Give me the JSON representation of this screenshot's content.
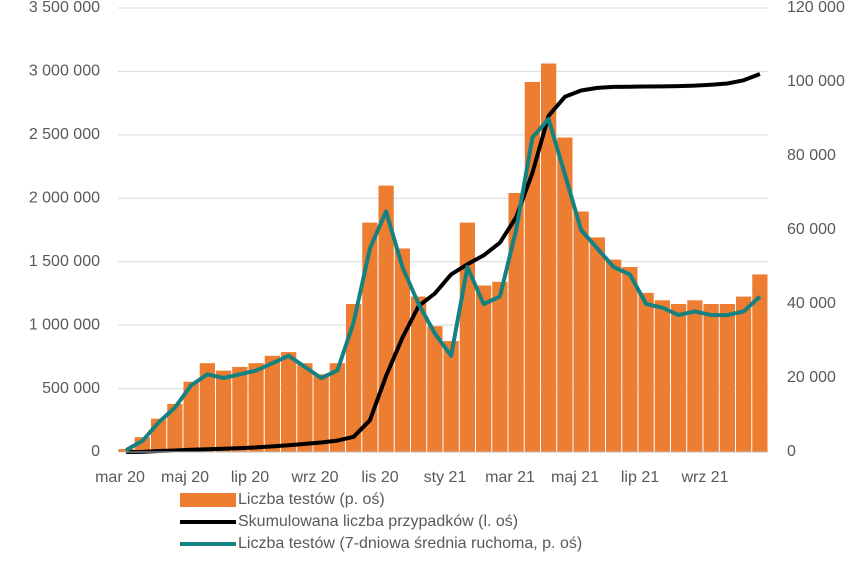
{
  "chart_data": {
    "type": "bar",
    "categories": [
      "mar 20",
      null,
      null,
      null,
      "maj 20",
      null,
      null,
      null,
      "lip 20",
      null,
      null,
      null,
      "wrz 20",
      null,
      null,
      null,
      "lis 20",
      null,
      null,
      null,
      "sty 21",
      null,
      null,
      null,
      "mar 21",
      null,
      null,
      null,
      "maj 21",
      null,
      null,
      null,
      "lip 21",
      null,
      null,
      null,
      "wrz 21",
      null,
      null,
      null
    ],
    "series": [
      {
        "name": "Liczba testów (p. oś)",
        "type": "bar",
        "axis": "y2",
        "color": "#ed7d31",
        "values": [
          800,
          4000,
          9000,
          13000,
          19000,
          24000,
          22000,
          23000,
          24000,
          26000,
          27000,
          24000,
          21000,
          24000,
          40000,
          62000,
          72000,
          55000,
          42000,
          34000,
          30000,
          62000,
          45000,
          46000,
          70000,
          100000,
          105000,
          85000,
          65000,
          58000,
          52000,
          50000,
          43000,
          41000,
          40000,
          41000,
          40000,
          40000,
          42000,
          48000
        ]
      },
      {
        "name": "Skumulowana liczba przypadków (l. oś)",
        "type": "line",
        "axis": "y",
        "color": "#000000",
        "values": [
          0,
          1000,
          8000,
          12000,
          17000,
          22000,
          26000,
          31000,
          36000,
          44000,
          53000,
          64000,
          75000,
          90000,
          120000,
          250000,
          600000,
          900000,
          1150000,
          1250000,
          1400000,
          1480000,
          1550000,
          1650000,
          1850000,
          2200000,
          2650000,
          2800000,
          2850000,
          2870000,
          2878000,
          2880000,
          2881000,
          2882000,
          2884000,
          2888000,
          2895000,
          2905000,
          2930000,
          2980000
        ]
      },
      {
        "name": "Liczba testów (7-dniowa średnia ruchoma, p. oś)",
        "type": "line",
        "axis": "y2",
        "color": "#138280",
        "values": [
          500,
          3000,
          8000,
          12000,
          18000,
          21000,
          20000,
          21000,
          22000,
          24000,
          26000,
          23000,
          20000,
          22000,
          35000,
          55000,
          65000,
          50000,
          40000,
          32000,
          26000,
          50000,
          40000,
          42000,
          60000,
          85000,
          90000,
          75000,
          60000,
          55000,
          50000,
          48000,
          40000,
          39000,
          37000,
          38000,
          37000,
          37000,
          38000,
          42000
        ]
      }
    ],
    "ylim": [
      0,
      3500000
    ],
    "yticks": [
      0,
      {
        "value": 500000,
        "label": "500 000"
      },
      {
        "value": 1000000,
        "label": "1 000 000"
      },
      {
        "value": 1500000,
        "label": "1 500 000"
      },
      {
        "value": 2000000,
        "label": "2 000 000"
      },
      {
        "value": 2500000,
        "label": "2 500 000"
      },
      {
        "value": 3000000,
        "label": "3 000 000"
      },
      {
        "value": 3500000,
        "label": "3 500 000"
      }
    ],
    "y2lim": [
      0,
      120000
    ],
    "y2ticks": [
      0,
      {
        "value": 20000,
        "label": "20 000"
      },
      {
        "value": 40000,
        "label": "40 000"
      },
      {
        "value": 60000,
        "label": "60 000"
      },
      {
        "value": 80000,
        "label": "80 000"
      },
      {
        "value": 100000,
        "label": "100 000"
      },
      {
        "value": 120000,
        "label": "120 000"
      }
    ],
    "grid": true,
    "legend": "bottom"
  }
}
